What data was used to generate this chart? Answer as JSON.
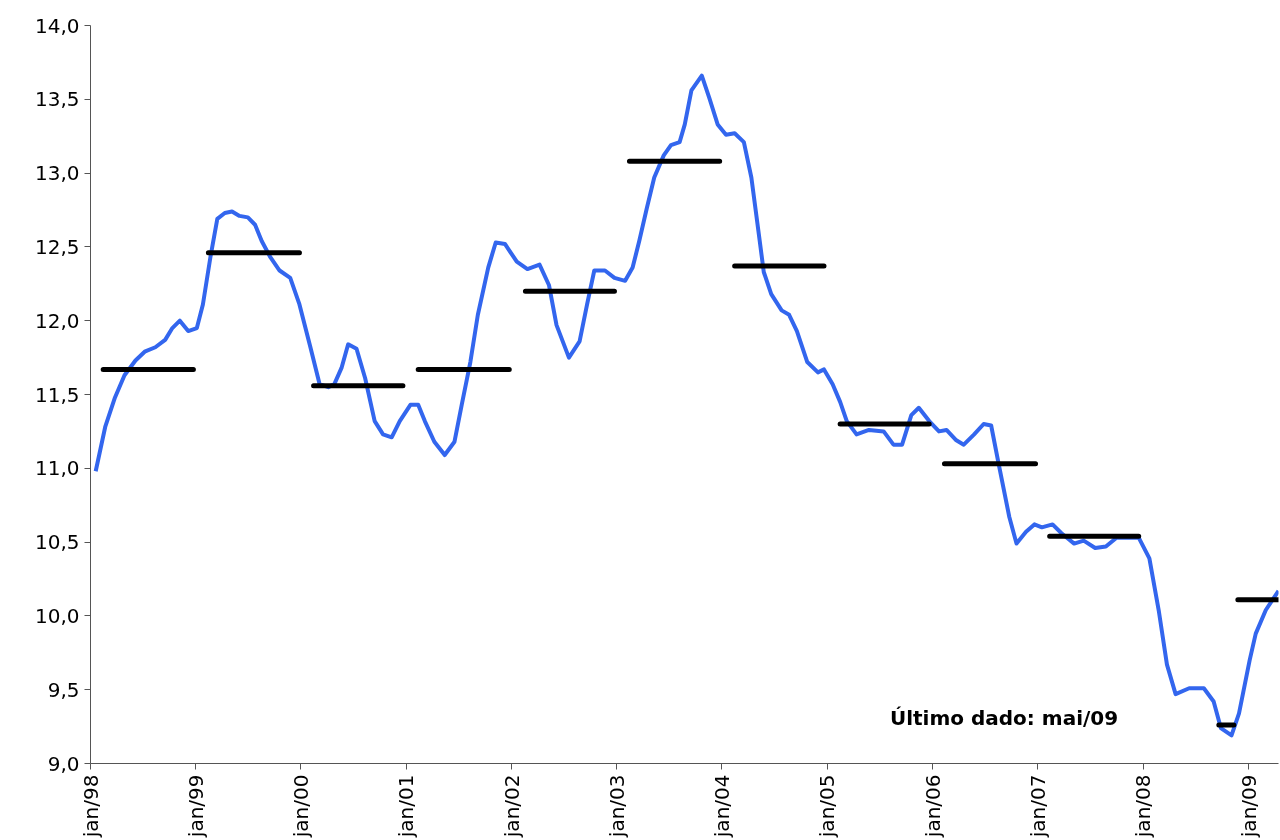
{
  "chart_data": {
    "type": "line",
    "xlim": [
      "1998-01-01",
      "2009-04-15"
    ],
    "xticks": [
      {
        "value": "1998-01",
        "label": "jan/98"
      },
      {
        "value": "1999-01",
        "label": "jan/99"
      },
      {
        "value": "2000-01",
        "label": "jan/00"
      },
      {
        "value": "2001-01",
        "label": "jan/01"
      },
      {
        "value": "2002-01",
        "label": "jan/02"
      },
      {
        "value": "2003-01",
        "label": "jan/03"
      },
      {
        "value": "2004-01",
        "label": "jan/04"
      },
      {
        "value": "2005-01",
        "label": "jan/05"
      },
      {
        "value": "2006-01",
        "label": "jan/06"
      },
      {
        "value": "2007-01",
        "label": "jan/07"
      },
      {
        "value": "2008-01",
        "label": "jan/08"
      },
      {
        "value": "2009-01",
        "label": "jan/09"
      }
    ],
    "ylim": [
      9,
      14
    ],
    "yticks": [
      {
        "value": 9,
        "label": "9,0"
      },
      {
        "value": 9.5,
        "label": "9,5"
      },
      {
        "value": 10,
        "label": "10,0"
      },
      {
        "value": 10.5,
        "label": "10,5"
      },
      {
        "value": 11,
        "label": "11,0"
      },
      {
        "value": 11.5,
        "label": "11,5"
      },
      {
        "value": 12,
        "label": "12,0"
      },
      {
        "value": 12.5,
        "label": "12,5"
      },
      {
        "value": 13,
        "label": "13,0"
      },
      {
        "value": 13.5,
        "label": "13,5"
      },
      {
        "value": 14,
        "label": "14,0"
      }
    ],
    "grid": false,
    "marker": "none",
    "line_style": "solid",
    "series": [
      {
        "color": "#3366ee",
        "x": [
          "1998-01-19",
          "1998-02-21",
          "1998-03-27",
          "1998-04-29",
          "1998-06-06",
          "1998-07-08",
          "1998-08-14",
          "1998-09-17",
          "1998-10-12",
          "1998-11-07",
          "1998-12-06",
          "1999-01-05",
          "1999-01-26",
          "1999-02-21",
          "1999-03-17",
          "1999-04-12",
          "1999-05-07",
          "1999-06-02",
          "1999-07-01",
          "1999-07-26",
          "1999-08-18",
          "1999-09-17",
          "1999-10-19",
          "1999-11-25",
          "1999-12-27",
          "2000-02-03",
          "2000-03-06",
          "2000-04-05",
          "2000-04-26",
          "2000-05-21",
          "2000-06-13",
          "2000-07-12",
          "2000-08-11",
          "2000-09-13",
          "2000-10-12",
          "2000-11-11",
          "2000-12-09",
          "2001-01-15",
          "2001-02-11",
          "2001-03-06",
          "2001-04-08",
          "2001-05-14",
          "2001-06-17",
          "2001-07-12",
          "2001-08-11",
          "2001-09-06",
          "2001-10-12",
          "2001-11-07",
          "2001-12-09",
          "2002-01-19",
          "2002-02-25",
          "2002-04-08",
          "2002-05-11",
          "2002-06-06",
          "2002-07-19",
          "2002-08-25",
          "2002-09-20",
          "2002-10-15",
          "2002-11-21",
          "2002-12-24",
          "2003-01-30",
          "2003-02-25",
          "2003-03-20",
          "2003-04-15",
          "2003-05-11",
          "2003-06-13",
          "2003-07-08",
          "2003-08-07",
          "2003-08-25",
          "2003-09-17",
          "2003-10-23",
          "2003-11-18",
          "2003-12-17",
          "2004-01-15",
          "2004-02-14",
          "2004-03-17",
          "2004-04-12",
          "2004-05-11",
          "2004-05-25",
          "2004-06-20",
          "2004-07-26",
          "2004-08-21",
          "2004-09-17",
          "2004-10-23",
          "2004-11-29",
          "2004-12-20",
          "2005-01-19",
          "2005-02-14",
          "2005-03-09",
          "2005-04-12",
          "2005-05-25",
          "2005-07-15",
          "2005-08-18",
          "2005-09-17",
          "2005-10-19",
          "2005-11-14",
          "2005-12-20",
          "2006-01-23",
          "2006-02-18",
          "2006-03-24",
          "2006-04-19",
          "2006-05-25",
          "2006-06-27",
          "2006-07-23",
          "2006-08-18",
          "2006-09-24",
          "2006-10-19",
          "2006-11-21",
          "2006-12-20",
          "2007-01-15",
          "2007-02-21",
          "2007-03-24",
          "2007-05-07",
          "2007-06-09",
          "2007-07-19",
          "2007-08-25",
          "2007-10-01",
          "2007-12-17",
          "2008-01-23",
          "2008-02-25",
          "2008-03-24",
          "2008-04-23",
          "2008-06-09",
          "2008-07-30",
          "2008-09-02",
          "2008-09-27",
          "2008-11-03",
          "2008-11-29",
          "2009-01-05",
          "2009-01-26",
          "2009-03-02",
          "2009-04-15"
        ],
        "values": [
          10.98,
          11.28,
          11.48,
          11.63,
          11.73,
          11.79,
          11.82,
          11.87,
          11.95,
          12.0,
          11.93,
          11.95,
          12.11,
          12.43,
          12.69,
          12.73,
          12.74,
          12.71,
          12.7,
          12.65,
          12.54,
          12.43,
          12.34,
          12.29,
          12.11,
          11.82,
          11.57,
          11.55,
          11.57,
          11.68,
          11.84,
          11.81,
          11.61,
          11.32,
          11.23,
          11.21,
          11.32,
          11.43,
          11.43,
          11.32,
          11.18,
          11.09,
          11.18,
          11.43,
          11.72,
          12.04,
          12.36,
          12.53,
          12.52,
          12.4,
          12.35,
          12.38,
          12.24,
          11.97,
          11.75,
          11.86,
          12.11,
          12.34,
          12.34,
          12.29,
          12.27,
          12.36,
          12.54,
          12.76,
          12.97,
          13.12,
          13.19,
          13.21,
          13.33,
          13.56,
          13.66,
          13.51,
          13.33,
          13.26,
          13.27,
          13.21,
          12.97,
          12.54,
          12.33,
          12.18,
          12.07,
          12.04,
          11.93,
          11.72,
          11.65,
          11.67,
          11.57,
          11.45,
          11.32,
          11.23,
          11.26,
          11.25,
          11.16,
          11.16,
          11.36,
          11.41,
          11.32,
          11.25,
          11.26,
          11.19,
          11.16,
          11.23,
          11.3,
          11.29,
          11.03,
          10.67,
          10.49,
          10.57,
          10.62,
          10.6,
          10.62,
          10.56,
          10.49,
          10.51,
          10.46,
          10.47,
          10.53,
          10.53,
          10.39,
          10.03,
          9.67,
          9.47,
          9.51,
          9.51,
          9.42,
          9.24,
          9.19,
          9.34,
          9.7,
          9.88,
          10.04,
          10.17
        ]
      },
      {
        "color": "#000000",
        "x": [
          "1998-02-14",
          "1998-12-24",
          "1998-12-27",
          "1999-02-14",
          "1999-12-27",
          "2000-01-01",
          "2000-02-14",
          "2000-12-20",
          "2000-12-24",
          "2001-02-11",
          "2001-12-24",
          "2001-12-27",
          "2002-02-18",
          "2002-12-24",
          "2002-12-27",
          "2003-02-14",
          "2003-12-24",
          "2003-12-27",
          "2004-02-14",
          "2004-12-20",
          "2004-12-24",
          "2005-02-14",
          "2005-12-20",
          "2005-12-24",
          "2006-02-11",
          "2006-12-24",
          "2006-12-27",
          "2007-02-11",
          "2007-12-17",
          "2007-12-20",
          "2008-09-20",
          "2008-11-11",
          "2008-11-14",
          "2008-11-25",
          "2009-04-15"
        ],
        "values": [
          11.67,
          11.67,
          null,
          12.46,
          12.46,
          null,
          11.56,
          11.56,
          null,
          11.67,
          11.67,
          null,
          12.2,
          12.2,
          null,
          13.08,
          13.08,
          null,
          12.37,
          12.37,
          null,
          11.3,
          11.3,
          null,
          11.03,
          11.03,
          null,
          10.54,
          10.54,
          null,
          9.26,
          9.26,
          null,
          10.11,
          10.11
        ]
      }
    ],
    "annotations": [
      "Último dado: mai/09"
    ]
  }
}
